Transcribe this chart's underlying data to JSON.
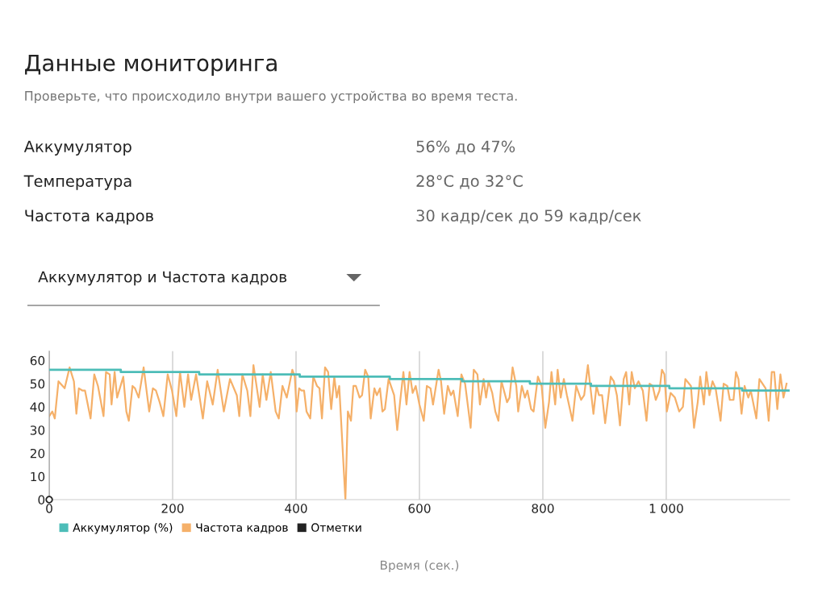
{
  "chart_data": {
    "type": "line",
    "title": "Данные мониторинга",
    "subtitle": "Проверьте, что происходило внутри вашего устройства во время теста.",
    "annotations": [
      "Аккумулятор",
      "56% до 47%",
      "Температура",
      "28°C до 32°C",
      "Частота кадров",
      "30 кадр/сек до 59 кадр/сек",
      "Аккумулятор и Частота кадров"
    ],
    "xlabel": "Время (сек.)",
    "xlim": [
      0,
      1200
    ],
    "xticks": [
      0,
      200,
      400,
      600,
      800,
      {
        "value": 1000,
        "label": "1 000"
      }
    ],
    "ylim": [
      0,
      64
    ],
    "yticks": [
      0,
      10,
      20,
      30,
      40,
      50,
      60
    ],
    "grid": "x",
    "legend": "bottom left",
    "series": [
      {
        "name": "Аккумулятор (%)",
        "type": "step",
        "color": "#4dbdb8",
        "marker": "none",
        "x": [
          0,
          116,
          243,
          406,
          552,
          669,
          779,
          878,
          1005,
          1123,
          1199
        ],
        "values": [
          56,
          55,
          54,
          53,
          52,
          51,
          50,
          49,
          48,
          47,
          47
        ]
      },
      {
        "name": "Частота кадров",
        "color": "#f5b069",
        "marker": "none",
        "x": [
          0,
          5,
          9,
          15,
          25,
          33,
          40,
          44,
          48,
          54,
          58,
          67,
          73,
          79,
          88,
          92,
          98,
          101,
          106,
          110,
          120,
          125,
          129,
          135,
          139,
          145,
          153,
          162,
          168,
          173,
          179,
          185,
          192,
          199,
          206,
          212,
          219,
          225,
          230,
          238,
          249,
          256,
          265,
          273,
          283,
          293,
          304,
          308,
          313,
          321,
          326,
          331,
          341,
          346,
          352,
          359,
          367,
          372,
          378,
          385,
          394,
          398,
          401,
          405,
          409,
          413,
          417,
          423,
          428,
          434,
          438,
          442,
          447,
          452,
          457,
          462,
          466,
          470,
          480,
          484,
          489,
          493,
          497,
          503,
          507,
          512,
          517,
          521,
          527,
          531,
          536,
          540,
          544,
          550,
          559,
          564,
          569,
          574,
          579,
          584,
          589,
          594,
          600,
          607,
          612,
          618,
          622,
          631,
          635,
          640,
          646,
          651,
          655,
          662,
          668,
          674,
          683,
          688,
          694,
          698,
          704,
          708,
          712,
          718,
          723,
          728,
          733,
          742,
          746,
          751,
          757,
          760,
          766,
          771,
          775,
          781,
          785,
          792,
          798,
          804,
          810,
          814,
          820,
          824,
          829,
          834,
          839,
          848,
          854,
          862,
          867,
          873,
          882,
          887,
          891,
          896,
          901,
          910,
          915,
          920,
          925,
          931,
          935,
          940,
          944,
          949,
          955,
          962,
          968,
          973,
          978,
          983,
          989,
          993,
          997,
          1001,
          1007,
          1014,
          1021,
          1027,
          1031,
          1040,
          1045,
          1051,
          1055,
          1061,
          1065,
          1070,
          1075,
          1080,
          1088,
          1093,
          1099,
          1103,
          1109,
          1113,
          1117,
          1122,
          1127,
          1133,
          1137,
          1146,
          1151,
          1161,
          1166,
          1171,
          1175,
          1180,
          1185,
          1190,
          1195
        ],
        "values": [
          36,
          38,
          35,
          51,
          48,
          57,
          51,
          37,
          48,
          47,
          47,
          35,
          54,
          49,
          36,
          55,
          54,
          41,
          55,
          44,
          53,
          38,
          34,
          49,
          48,
          44,
          57,
          38,
          48,
          47,
          42,
          36,
          54,
          47,
          36,
          55,
          40,
          54,
          43,
          54,
          35,
          51,
          41,
          56,
          38,
          52,
          45,
          36,
          54,
          47,
          36,
          58,
          40,
          54,
          43,
          55,
          38,
          35,
          49,
          44,
          56,
          53,
          38,
          48,
          47,
          47,
          38,
          35,
          53,
          49,
          48,
          35,
          57,
          55,
          39,
          53,
          44,
          49,
          0,
          38,
          34,
          49,
          49,
          44,
          45,
          56,
          53,
          35,
          48,
          45,
          48,
          38,
          39,
          52,
          45,
          30,
          43,
          55,
          41,
          55,
          46,
          49,
          41,
          34,
          49,
          48,
          41,
          56,
          51,
          37,
          49,
          45,
          47,
          36,
          54,
          50,
          31,
          56,
          54,
          41,
          52,
          44,
          51,
          46,
          38,
          34,
          51,
          42,
          44,
          57,
          49,
          38,
          49,
          44,
          47,
          39,
          38,
          53,
          49,
          31,
          42,
          55,
          41,
          56,
          44,
          52,
          45,
          34,
          49,
          43,
          45,
          58,
          37,
          49,
          45,
          45,
          33,
          53,
          51,
          45,
          32,
          52,
          55,
          41,
          55,
          48,
          51,
          47,
          34,
          50,
          49,
          43,
          47,
          56,
          54,
          38,
          46,
          44,
          38,
          40,
          52,
          49,
          31,
          42,
          53,
          41,
          55,
          45,
          51,
          48,
          34,
          50,
          49,
          43,
          43,
          55,
          52,
          37,
          49,
          44,
          47,
          35,
          52,
          48,
          34,
          55,
          55,
          39,
          54,
          44,
          50
        ]
      },
      {
        "name": "Отметки",
        "type": "scatter",
        "color": "#222222",
        "marker": "circle",
        "x": [
          0
        ],
        "values": [
          0
        ]
      }
    ]
  }
}
